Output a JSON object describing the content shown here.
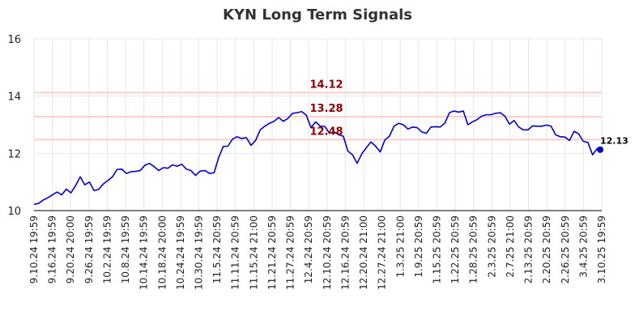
{
  "chart_data": {
    "type": "line",
    "title": "KYN Long Term Signals",
    "xlabel": "",
    "ylabel": "",
    "ylim": [
      10,
      16
    ],
    "y_ticks": [
      10,
      12,
      14,
      16
    ],
    "grid": true,
    "x_tick_labels": [
      "9.10.24 19:59",
      "9.16.24 19:59",
      "9.20.24 20:00",
      "9.26.24 19:59",
      "10.2.24 19:59",
      "10.8.24 19:59",
      "10.14.24 19:59",
      "10.18.24 20:00",
      "10.24.24 19:59",
      "10.30.24 19:59",
      "11.5.24 20:59",
      "11.11.24 20:59",
      "11.15.24 21:00",
      "11.21.24 20:59",
      "11.27.24 20:59",
      "12.4.24 20:59",
      "12.10.24 20:59",
      "12.16.24 20:59",
      "12.20.24 21:00",
      "12.27.24 21:00",
      "1.3.25 21:00",
      "1.9.25 20:59",
      "1.15.25 20:59",
      "1.22.25 20:59",
      "1.28.25 20:59",
      "2.3.25 20:59",
      "2.7.25 21:00",
      "2.13.25 20:59",
      "2.20.25 20:59",
      "2.26.25 20:59",
      "3.4.25 20:59",
      "3.10.25 19:59"
    ],
    "series": [
      {
        "color": "#0000cc",
        "values": [
          10.22,
          10.25,
          10.37,
          10.45,
          10.55,
          10.65,
          10.55,
          10.75,
          10.62,
          10.87,
          11.18,
          10.9,
          11.0,
          10.7,
          10.74,
          10.93,
          11.05,
          11.18,
          11.44,
          11.45,
          11.3,
          11.36,
          11.37,
          11.4,
          11.58,
          11.65,
          11.54,
          11.4,
          11.5,
          11.48,
          11.6,
          11.55,
          11.62,
          11.45,
          11.4,
          11.23,
          11.38,
          11.4,
          11.3,
          11.32,
          11.85,
          12.24,
          12.25,
          12.5,
          12.58,
          12.52,
          12.55,
          12.28,
          12.45,
          12.82,
          12.95,
          13.05,
          13.12,
          13.25,
          13.12,
          13.22,
          13.4,
          13.42,
          13.46,
          13.33,
          12.9,
          13.1,
          12.95,
          12.94,
          12.7,
          12.75,
          12.65,
          12.6,
          12.08,
          11.95,
          11.65,
          11.98,
          12.2,
          12.4,
          12.25,
          12.05,
          12.47,
          12.6,
          12.95,
          13.05,
          13.0,
          12.85,
          12.92,
          12.9,
          12.75,
          12.7,
          12.92,
          12.93,
          12.92,
          13.06,
          13.42,
          13.48,
          13.44,
          13.48,
          13.0,
          13.1,
          13.18,
          13.3,
          13.35,
          13.35,
          13.4,
          13.42,
          13.3,
          13.02,
          13.15,
          12.92,
          12.82,
          12.82,
          12.96,
          12.95,
          12.95,
          12.99,
          12.95,
          12.65,
          12.58,
          12.57,
          12.45,
          12.77,
          12.68,
          12.42,
          12.38,
          11.95,
          12.17,
          12.13
        ]
      }
    ],
    "reference_lines": [
      {
        "value": 14.12,
        "label": "14.12",
        "color": "#ffcccc"
      },
      {
        "value": 13.28,
        "label": "13.28",
        "color": "#ffcccc"
      },
      {
        "value": 12.48,
        "label": "12.48",
        "color": "#ffcccc"
      }
    ],
    "last_value_label": "12.13",
    "colors": {
      "line": "#0000cc",
      "ref_line": "#ffcccc",
      "ref_label": "#8b0000",
      "grid": "#e6e6e6"
    }
  }
}
